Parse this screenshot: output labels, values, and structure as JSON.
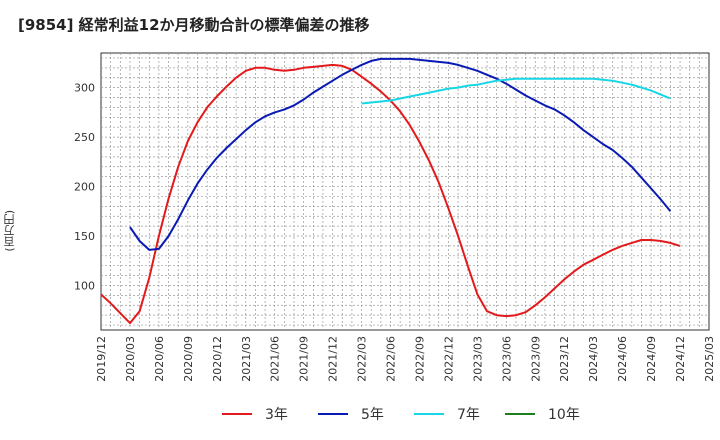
{
  "title": "[9854]  経常利益12か月移動合計の標準偏差の推移",
  "y_unit": "(百万円)",
  "chart_data": {
    "type": "line",
    "title": "[9854]  経常利益12か月移動合計の標準偏差の推移",
    "ylabel": "(百万円)",
    "xlabel": "",
    "ylim": [
      55,
      335
    ],
    "y_ticks": [
      100,
      150,
      200,
      250,
      300
    ],
    "x_range": [
      "2019-12",
      "2025-03"
    ],
    "x_ticks": [
      "2019/12",
      "2020/03",
      "2020/06",
      "2020/09",
      "2020/12",
      "2021/03",
      "2021/06",
      "2021/09",
      "2021/12",
      "2022/03",
      "2022/06",
      "2022/09",
      "2022/12",
      "2023/03",
      "2023/06",
      "2023/09",
      "2023/12",
      "2024/03",
      "2024/06",
      "2024/09",
      "2024/12",
      "2025/03"
    ],
    "grid": true,
    "legend_position": "bottom",
    "series": [
      {
        "name": "3年",
        "color": "#e31a1c",
        "points": [
          [
            "2019-12",
            91
          ],
          [
            "2020-01",
            82
          ],
          [
            "2020-02",
            72
          ],
          [
            "2020-03",
            62
          ],
          [
            "2020-04",
            74
          ],
          [
            "2020-05",
            108
          ],
          [
            "2020-06",
            150
          ],
          [
            "2020-07",
            188
          ],
          [
            "2020-08",
            220
          ],
          [
            "2020-09",
            246
          ],
          [
            "2020-10",
            265
          ],
          [
            "2020-11",
            280
          ],
          [
            "2020-12",
            291
          ],
          [
            "2021-01",
            301
          ],
          [
            "2021-02",
            310
          ],
          [
            "2021-03",
            317
          ],
          [
            "2021-04",
            320
          ],
          [
            "2021-05",
            320
          ],
          [
            "2021-06",
            318
          ],
          [
            "2021-07",
            317
          ],
          [
            "2021-08",
            318
          ],
          [
            "2021-09",
            320
          ],
          [
            "2021-10",
            321
          ],
          [
            "2021-11",
            322
          ],
          [
            "2021-12",
            323
          ],
          [
            "2022-01",
            322
          ],
          [
            "2022-02",
            318
          ],
          [
            "2022-03",
            311
          ],
          [
            "2022-04",
            304
          ],
          [
            "2022-05",
            296
          ],
          [
            "2022-06",
            287
          ],
          [
            "2022-07",
            276
          ],
          [
            "2022-08",
            262
          ],
          [
            "2022-09",
            245
          ],
          [
            "2022-10",
            226
          ],
          [
            "2022-11",
            204
          ],
          [
            "2022-12",
            178
          ],
          [
            "2023-01",
            150
          ],
          [
            "2023-02",
            120
          ],
          [
            "2023-03",
            91
          ],
          [
            "2023-04",
            74
          ],
          [
            "2023-05",
            70
          ],
          [
            "2023-06",
            69
          ],
          [
            "2023-07",
            70
          ],
          [
            "2023-08",
            73
          ],
          [
            "2023-09",
            80
          ],
          [
            "2023-10",
            88
          ],
          [
            "2023-11",
            97
          ],
          [
            "2023-12",
            106
          ],
          [
            "2024-01",
            114
          ],
          [
            "2024-02",
            121
          ],
          [
            "2024-03",
            126
          ],
          [
            "2024-04",
            131
          ],
          [
            "2024-05",
            136
          ],
          [
            "2024-06",
            140
          ],
          [
            "2024-07",
            143
          ],
          [
            "2024-08",
            146
          ],
          [
            "2024-09",
            146
          ],
          [
            "2024-10",
            145
          ],
          [
            "2024-11",
            143
          ],
          [
            "2024-12",
            140
          ]
        ]
      },
      {
        "name": "5年",
        "color": "#0a1ab4",
        "points": [
          [
            "2020-03",
            159
          ],
          [
            "2020-04",
            145
          ],
          [
            "2020-05",
            136
          ],
          [
            "2020-06",
            137
          ],
          [
            "2020-07",
            150
          ],
          [
            "2020-08",
            167
          ],
          [
            "2020-09",
            186
          ],
          [
            "2020-10",
            203
          ],
          [
            "2020-11",
            217
          ],
          [
            "2020-12",
            229
          ],
          [
            "2021-01",
            239
          ],
          [
            "2021-02",
            248
          ],
          [
            "2021-03",
            257
          ],
          [
            "2021-04",
            265
          ],
          [
            "2021-05",
            271
          ],
          [
            "2021-06",
            275
          ],
          [
            "2021-07",
            278
          ],
          [
            "2021-08",
            282
          ],
          [
            "2021-09",
            288
          ],
          [
            "2021-10",
            295
          ],
          [
            "2021-11",
            301
          ],
          [
            "2021-12",
            307
          ],
          [
            "2022-01",
            313
          ],
          [
            "2022-02",
            318
          ],
          [
            "2022-03",
            323
          ],
          [
            "2022-04",
            327
          ],
          [
            "2022-05",
            329
          ],
          [
            "2022-06",
            329
          ],
          [
            "2022-07",
            329
          ],
          [
            "2022-08",
            329
          ],
          [
            "2022-09",
            328
          ],
          [
            "2022-10",
            327
          ],
          [
            "2022-11",
            326
          ],
          [
            "2022-12",
            325
          ],
          [
            "2023-01",
            323
          ],
          [
            "2023-02",
            320
          ],
          [
            "2023-03",
            317
          ],
          [
            "2023-04",
            313
          ],
          [
            "2023-05",
            309
          ],
          [
            "2023-06",
            304
          ],
          [
            "2023-07",
            298
          ],
          [
            "2023-08",
            292
          ],
          [
            "2023-09",
            287
          ],
          [
            "2023-10",
            282
          ],
          [
            "2023-11",
            278
          ],
          [
            "2023-12",
            272
          ],
          [
            "2024-01",
            265
          ],
          [
            "2024-02",
            257
          ],
          [
            "2024-03",
            250
          ],
          [
            "2024-04",
            243
          ],
          [
            "2024-05",
            237
          ],
          [
            "2024-06",
            229
          ],
          [
            "2024-07",
            220
          ],
          [
            "2024-08",
            209
          ],
          [
            "2024-09",
            198
          ],
          [
            "2024-10",
            187
          ],
          [
            "2024-11",
            175
          ]
        ]
      },
      {
        "name": "7年",
        "color": "#17d7e6",
        "points": [
          [
            "2022-03",
            284
          ],
          [
            "2022-04",
            285
          ],
          [
            "2022-05",
            286
          ],
          [
            "2022-06",
            287
          ],
          [
            "2022-07",
            289
          ],
          [
            "2022-08",
            291
          ],
          [
            "2022-09",
            293
          ],
          [
            "2022-10",
            295
          ],
          [
            "2022-11",
            297
          ],
          [
            "2022-12",
            299
          ],
          [
            "2023-01",
            300
          ],
          [
            "2023-02",
            302
          ],
          [
            "2023-03",
            303
          ],
          [
            "2023-04",
            305
          ],
          [
            "2023-05",
            307
          ],
          [
            "2023-06",
            308
          ],
          [
            "2023-07",
            309
          ],
          [
            "2023-08",
            309
          ],
          [
            "2023-09",
            309
          ],
          [
            "2023-10",
            309
          ],
          [
            "2023-11",
            309
          ],
          [
            "2023-12",
            309
          ],
          [
            "2024-01",
            309
          ],
          [
            "2024-02",
            309
          ],
          [
            "2024-03",
            309
          ],
          [
            "2024-04",
            308
          ],
          [
            "2024-05",
            307
          ],
          [
            "2024-06",
            305
          ],
          [
            "2024-07",
            303
          ],
          [
            "2024-08",
            300
          ],
          [
            "2024-09",
            297
          ],
          [
            "2024-10",
            293
          ],
          [
            "2024-11",
            289
          ]
        ]
      },
      {
        "name": "10年",
        "color": "#1e7d1e",
        "points": []
      }
    ]
  }
}
